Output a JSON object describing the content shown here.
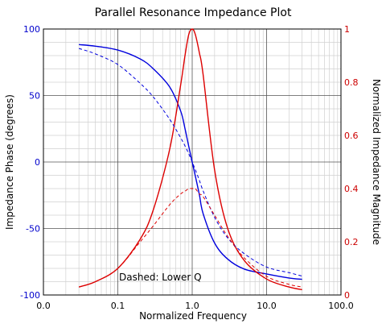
{
  "chart_data": {
    "type": "line",
    "title": "Parallel Resonance Impedance Plot",
    "xlabel": "Normalized Frequency",
    "ylabel_left": "Impedance Phase (degrees)",
    "ylabel_right": "Normalized Impedance Magnitude",
    "x_scale": "log",
    "xlim": [
      0.01,
      100
    ],
    "x_ticks": [
      0.01,
      0.1,
      1,
      10,
      100
    ],
    "x_tick_labels": [
      "0.0",
      "0.1",
      "1.0",
      "10.0",
      "100.0"
    ],
    "ylim_left": [
      -100,
      100
    ],
    "y_left_ticks": [
      -100,
      -50,
      0,
      50,
      100
    ],
    "y_left_tick_labels": [
      "-100",
      "-50",
      "0",
      "50",
      "100"
    ],
    "ylim_right": [
      0,
      1
    ],
    "y_right_ticks": [
      0,
      0.2,
      0.4,
      0.6,
      0.8,
      1
    ],
    "y_right_tick_labels": [
      "0",
      "0.2",
      "0.4",
      "0.6",
      "0.8",
      "1"
    ],
    "grid": true,
    "annotation": "Dashed: Lower Q",
    "colors": {
      "phase": "#0000dd",
      "magnitude": "#dd0000"
    },
    "x": [
      0.03,
      0.05,
      0.1,
      0.2,
      0.3,
      0.5,
      0.7,
      0.8,
      0.9,
      1.0,
      1.1,
      1.25,
      1.4,
      2,
      3,
      5,
      10,
      20,
      30
    ],
    "series": [
      {
        "axis": "left",
        "style": "solid",
        "color": "#0000dd",
        "values": [
          88.3,
          87.1,
          84.2,
          77.5,
          70.1,
          56.3,
          38.3,
          25.1,
          11.6,
          0,
          -10.4,
          -24.7,
          -38.7,
          -60.9,
          -73.0,
          -80.5,
          -84.2,
          -87.2,
          -88.2
        ]
      },
      {
        "axis": "right",
        "style": "solid",
        "color": "#dd0000",
        "values": [
          0.03,
          0.05,
          0.1,
          0.21,
          0.32,
          0.55,
          0.79,
          0.9,
          0.98,
          1.0,
          0.98,
          0.91,
          0.83,
          0.47,
          0.25,
          0.13,
          0.06,
          0.03,
          0.02
        ]
      },
      {
        "axis": "left",
        "style": "dashed",
        "color": "#0000dd",
        "values": [
          85.4,
          81.3,
          73.3,
          59.1,
          48.9,
          32.0,
          18.2,
          12.1,
          6.1,
          0,
          -5.7,
          -13.8,
          -21.6,
          -41.6,
          -57.1,
          -68.9,
          -79.0,
          -83.2,
          -85.8
        ]
      },
      {
        "axis": "right",
        "style": "dashed",
        "color": "#dd0000",
        "values": [
          0.03,
          0.05,
          0.1,
          0.2,
          0.26,
          0.34,
          0.38,
          0.39,
          0.4,
          0.4,
          0.4,
          0.38,
          0.37,
          0.3,
          0.22,
          0.14,
          0.07,
          0.04,
          0.03
        ]
      }
    ]
  }
}
